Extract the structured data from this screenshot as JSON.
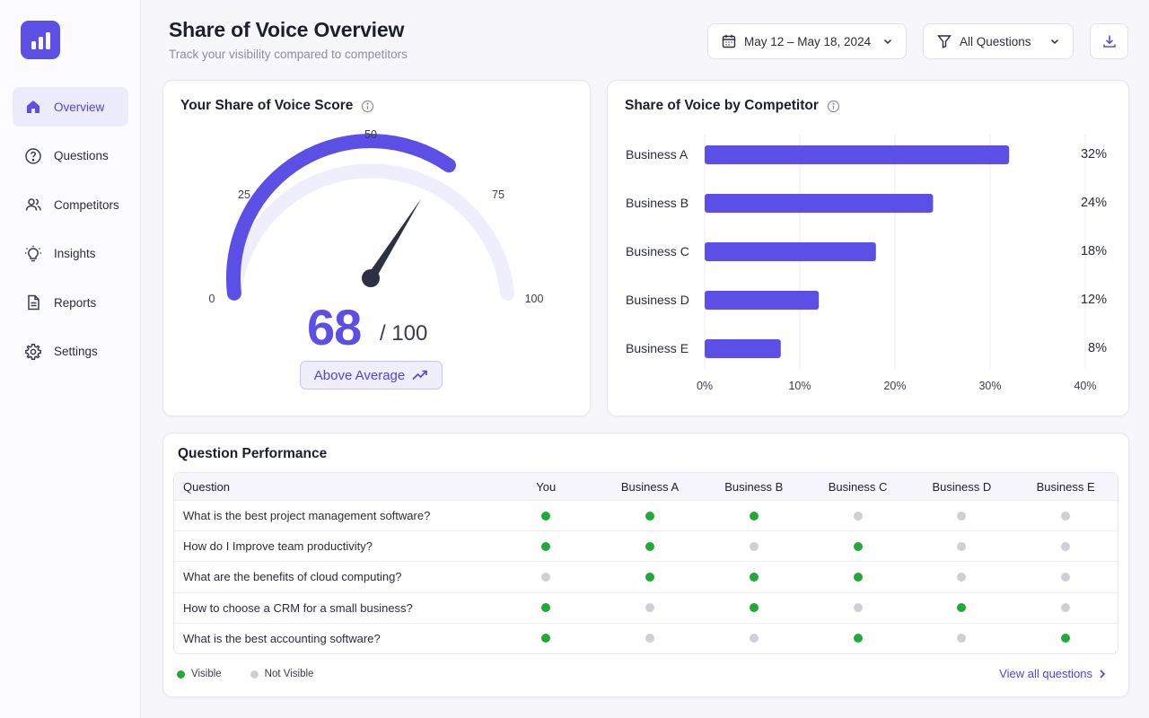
{
  "colors": {
    "accent": "#5b4fe6",
    "visible": "#22a93a",
    "not_visible": "#cfcfd6",
    "track": "#efeefc"
  },
  "sidebar": {
    "logo_icon": "bar-chart-icon",
    "items": [
      {
        "label": "Overview",
        "icon": "home-icon",
        "active": true
      },
      {
        "label": "Questions",
        "icon": "question-circle-icon",
        "active": false
      },
      {
        "label": "Competitors",
        "icon": "users-icon",
        "active": false
      },
      {
        "label": "Insights",
        "icon": "lightbulb-icon",
        "active": false
      },
      {
        "label": "Reports",
        "icon": "document-icon",
        "active": false
      },
      {
        "label": "Settings",
        "icon": "gear-icon",
        "active": false
      }
    ]
  },
  "header": {
    "title": "Share of Voice Overview",
    "subtitle": "Track your visibility compared to competitors",
    "date_range": "May 12 – May 18, 2024",
    "filter": "All Questions"
  },
  "score": {
    "title": "Your Share of Voice Score",
    "value": "68",
    "max": "/ 100",
    "value_num": 68,
    "max_num": 100,
    "status": "Above Average",
    "ticks": [
      "0",
      "25",
      "50",
      "75",
      "100"
    ]
  },
  "competitors": {
    "title": "Share of Voice by Competitor"
  },
  "chart_data": {
    "type": "bar",
    "orientation": "horizontal",
    "title": "Share of Voice by Competitor",
    "categories": [
      "Business A",
      "Business B",
      "Business C",
      "Business D",
      "Business E"
    ],
    "values": [
      32,
      24,
      18,
      12,
      8
    ],
    "value_labels": [
      "32%",
      "24%",
      "18%",
      "12%",
      "8%"
    ],
    "xlim": [
      0,
      40
    ],
    "x_ticks": [
      "0%",
      "10%",
      "20%",
      "30%",
      "40%"
    ],
    "grid": true
  },
  "table": {
    "title": "Question Performance",
    "columns": [
      "Question",
      "You",
      "Business A",
      "Business B",
      "Business C",
      "Business D",
      "Business E"
    ],
    "rows": [
      {
        "question": "What is the best project management software?",
        "visibility": [
          true,
          true,
          true,
          false,
          false,
          false
        ]
      },
      {
        "question": "How do I Improve team productivity?",
        "visibility": [
          true,
          true,
          false,
          true,
          false,
          false
        ]
      },
      {
        "question": "What are the benefits of cloud computing?",
        "visibility": [
          false,
          true,
          true,
          true,
          false,
          false
        ]
      },
      {
        "question": "How to choose a CRM for a small business?",
        "visibility": [
          true,
          false,
          true,
          false,
          true,
          false
        ]
      },
      {
        "question": "What is the best accounting software?",
        "visibility": [
          true,
          false,
          false,
          true,
          false,
          true
        ]
      }
    ],
    "legend_visible": "Visible",
    "legend_not_visible": "Not Visible",
    "view_all": "View all questions"
  }
}
